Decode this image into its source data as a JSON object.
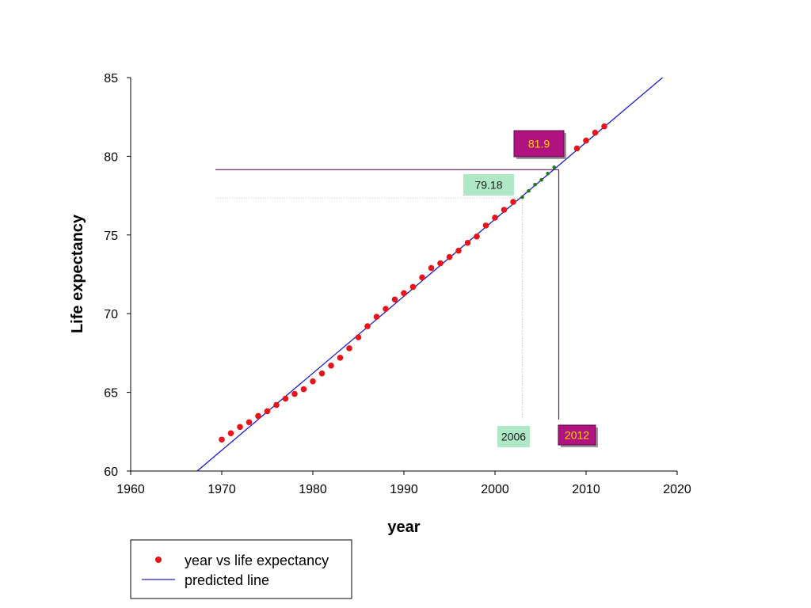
{
  "chart_data": {
    "type": "scatter",
    "xlabel": "year",
    "ylabel": "Life expectancy",
    "xlim": [
      1960,
      2020
    ],
    "ylim": [
      60,
      85
    ],
    "xticks": [
      1960,
      1970,
      1980,
      1990,
      2000,
      2010,
      2020
    ],
    "yticks": [
      60,
      65,
      70,
      75,
      80,
      85
    ],
    "grid": false,
    "legend_position": "bottom-left",
    "series": [
      {
        "name": "year vs life expectancy",
        "kind": "scatter",
        "color": "#e8141b",
        "points": [
          [
            1970,
            62.0
          ],
          [
            1971,
            62.4
          ],
          [
            1972,
            62.8
          ],
          [
            1973,
            63.1
          ],
          [
            1974,
            63.5
          ],
          [
            1975,
            63.8
          ],
          [
            1976,
            64.2
          ],
          [
            1977,
            64.6
          ],
          [
            1978,
            64.9
          ],
          [
            1979,
            65.2
          ],
          [
            1980,
            65.7
          ],
          [
            1981,
            66.2
          ],
          [
            1982,
            66.7
          ],
          [
            1983,
            67.2
          ],
          [
            1984,
            67.8
          ],
          [
            1985,
            68.5
          ],
          [
            1986,
            69.2
          ],
          [
            1987,
            69.8
          ],
          [
            1988,
            70.3
          ],
          [
            1989,
            70.9
          ],
          [
            1990,
            71.3
          ],
          [
            1991,
            71.7
          ],
          [
            1992,
            72.3
          ],
          [
            1993,
            72.9
          ],
          [
            1994,
            73.2
          ],
          [
            1995,
            73.6
          ],
          [
            1996,
            74.0
          ],
          [
            1997,
            74.5
          ],
          [
            1998,
            74.9
          ],
          [
            1999,
            75.6
          ],
          [
            2000,
            76.1
          ],
          [
            2001,
            76.6
          ],
          [
            2002,
            77.1
          ],
          [
            2009,
            80.5
          ],
          [
            2010,
            81.0
          ],
          [
            2011,
            81.5
          ],
          [
            2012,
            81.9
          ]
        ]
      },
      {
        "name": "predicted line",
        "kind": "line",
        "color": "#1c1ccc",
        "points": [
          [
            1967.3,
            60.0
          ],
          [
            2018.4,
            85.0
          ]
        ]
      }
    ],
    "predicted_points": {
      "color": "#1e7a1e",
      "points": [
        [
          2003,
          77.4
        ],
        [
          2003.7,
          77.8
        ],
        [
          2004.4,
          78.2
        ],
        [
          2005.1,
          78.5
        ],
        [
          2005.8,
          78.9
        ],
        [
          2006.5,
          79.3
        ]
      ]
    },
    "annotations": [
      {
        "id": "value_79",
        "text": "79.18",
        "style": "green",
        "guide": "dotted",
        "x": 2003,
        "y": 77.35
      },
      {
        "id": "year_2006",
        "text": "2006",
        "style": "green",
        "guide": "dotted",
        "x": 2003,
        "y": 77.35
      },
      {
        "id": "value_819",
        "text": "81.9",
        "style": "magenta",
        "guide": "solid",
        "x": 2007,
        "y": 79.15
      },
      {
        "id": "year_2012",
        "text": "2012",
        "style": "magenta",
        "guide": "solid",
        "x": 2007,
        "y": 79.15
      }
    ],
    "annotation_colors": {
      "green_fill": "#aee8c6",
      "green_text": "#1a1a1a",
      "green_guide": "#b9c9b9",
      "magenta_fill": "#b0127f",
      "magenta_text": "#ffd400",
      "magenta_guide": "#6b1a6b"
    }
  }
}
